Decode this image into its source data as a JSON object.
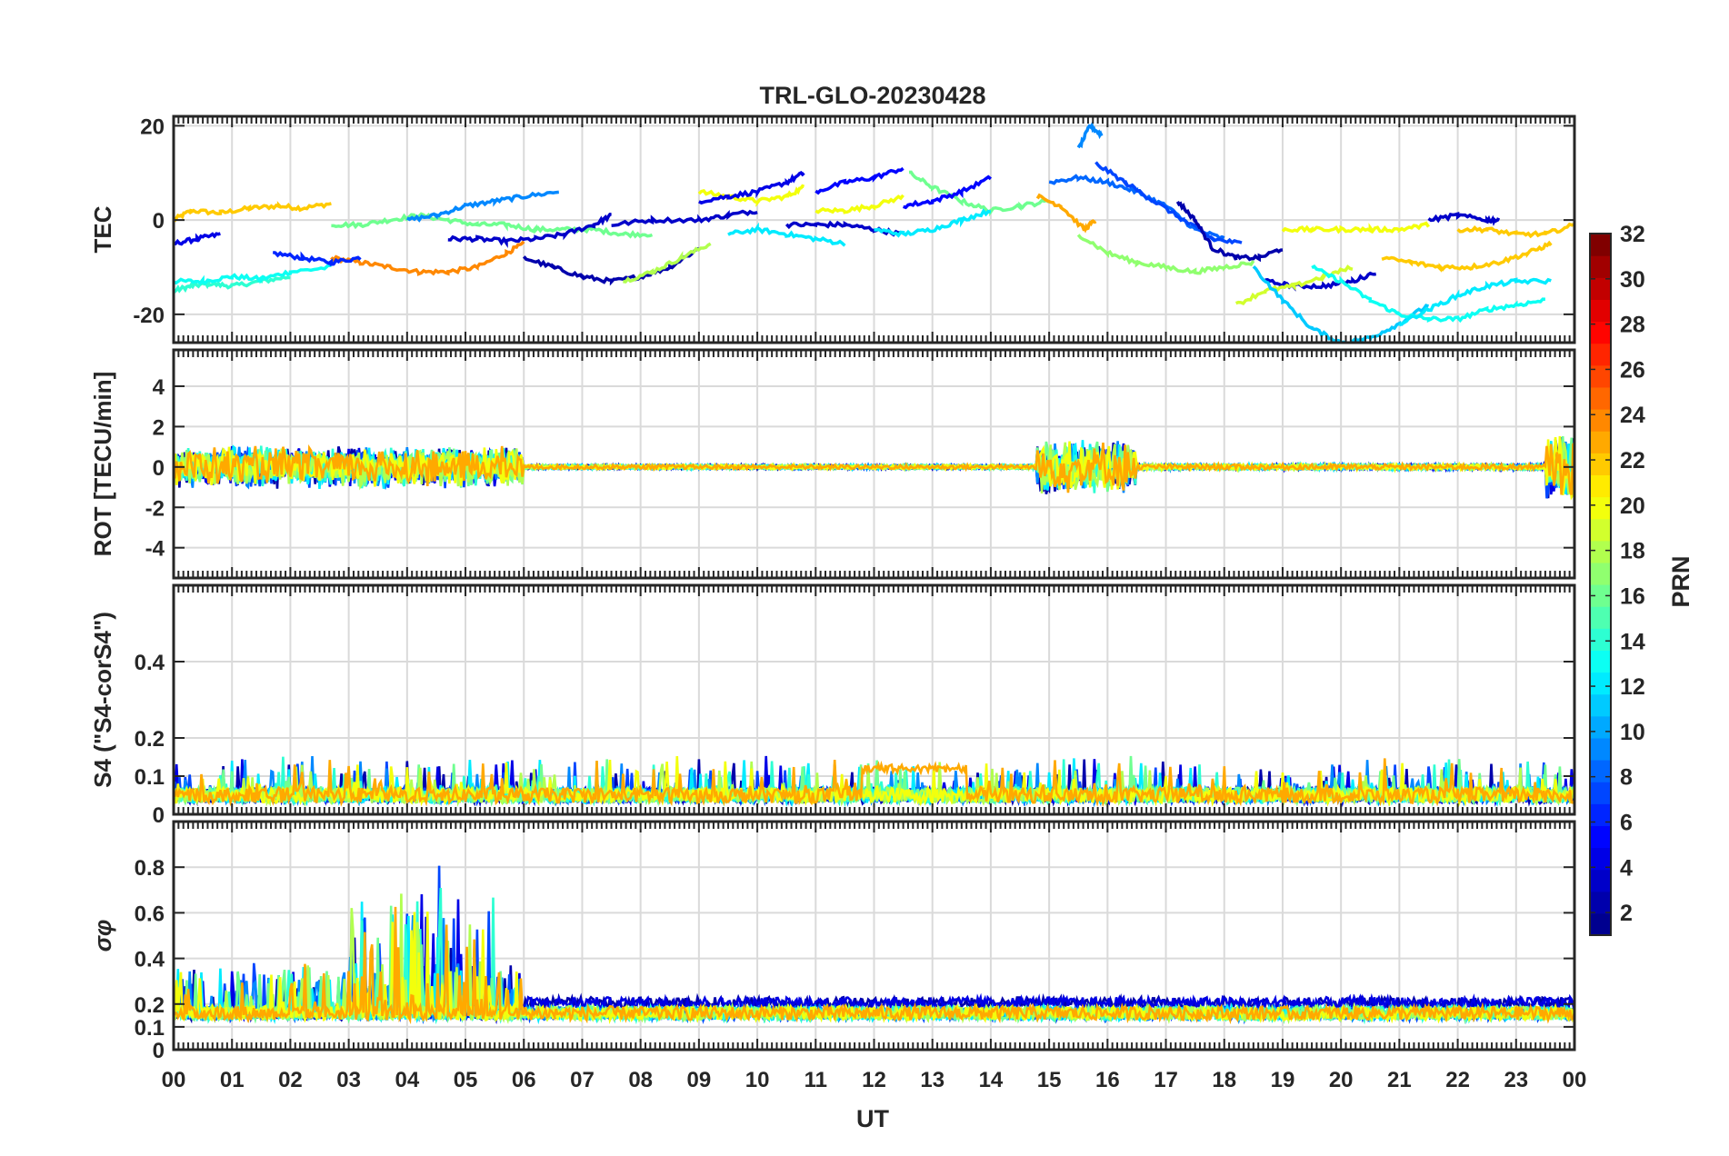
{
  "chart_data": {
    "type": "line",
    "title": "TRL-GLO-20230428",
    "xlabel": "UT",
    "x_tick_labels": [
      "00",
      "01",
      "02",
      "03",
      "04",
      "05",
      "06",
      "07",
      "08",
      "09",
      "10",
      "11",
      "12",
      "13",
      "14",
      "15",
      "16",
      "17",
      "18",
      "19",
      "20",
      "21",
      "22",
      "23",
      "00"
    ],
    "x_range_hours": [
      0,
      24
    ],
    "colorbar": {
      "label": "PRN",
      "range": [
        1,
        32
      ],
      "tick_labels": [
        "2",
        "4",
        "6",
        "8",
        "10",
        "12",
        "14",
        "16",
        "18",
        "20",
        "22",
        "24",
        "26",
        "28",
        "30",
        "32"
      ],
      "colormap": [
        "#00008f",
        "#0000ff",
        "#0080ff",
        "#00ffff",
        "#80ff80",
        "#ffff00",
        "#ff8000",
        "#ff0000",
        "#800000"
      ]
    },
    "panels": [
      {
        "id": "tec",
        "ylabel": "TEC",
        "ylim": [
          -26,
          22
        ],
        "y_ticks": [
          20,
          0,
          -20
        ],
        "y_tick_labels": [
          "20",
          "0",
          "-20"
        ],
        "series": [
          {
            "prn": 22,
            "x": [
              0,
              0.3,
              0.8,
              1.3,
              1.8,
              2.2,
              2.7
            ],
            "y": [
              0,
              2,
              1.5,
              2.5,
              3,
              2.5,
              3.5
            ]
          },
          {
            "prn": 14,
            "x": [
              0,
              0.3,
              0.6,
              1.0,
              1.5,
              2.0
            ],
            "y": [
              -15,
              -14,
              -13.5,
              -14,
              -13,
              -12
            ]
          },
          {
            "prn": 13,
            "x": [
              0,
              0.5,
              1.0,
              1.5,
              2.0,
              2.7
            ],
            "y": [
              -13,
              -13,
              -12,
              -12.5,
              -11,
              -10
            ]
          },
          {
            "prn": 4,
            "x": [
              0,
              0.4,
              0.8
            ],
            "y": [
              -5,
              -4,
              -3
            ]
          },
          {
            "prn": 24,
            "x": [
              2.7,
              3.2,
              3.7,
              4.2,
              4.7,
              5.2,
              5.7,
              6.0
            ],
            "y": [
              -8,
              -9,
              -10,
              -11,
              -11,
              -10,
              -7,
              -5
            ]
          },
          {
            "prn": 6,
            "x": [
              1.7,
              2.2,
              2.7,
              3.2
            ],
            "y": [
              -7,
              -8,
              -9,
              -8
            ]
          },
          {
            "prn": 16,
            "x": [
              2.7,
              3.2,
              3.7,
              4.2,
              4.7,
              5.2,
              5.7,
              6.2,
              6.7,
              7.2,
              7.7,
              8.2
            ],
            "y": [
              -1,
              -1,
              0,
              1,
              0,
              -1,
              -1,
              -2,
              -2,
              -2,
              -3,
              -3
            ]
          },
          {
            "prn": 9,
            "x": [
              4.0,
              4.5,
              5.0,
              5.5,
              6.0,
              6.6
            ],
            "y": [
              0,
              1,
              3,
              4,
              5,
              6
            ]
          },
          {
            "prn": 3,
            "x": [
              4.7,
              5.2,
              5.7,
              6.2,
              6.7,
              7.2,
              7.5
            ],
            "y": [
              -4,
              -4,
              -4.5,
              -4,
              -3,
              -1,
              1
            ]
          },
          {
            "prn": 2,
            "x": [
              6.0,
              6.5,
              7.0,
              7.5,
              8.0,
              8.5,
              9.0
            ],
            "y": [
              -8,
              -10,
              -12,
              -13,
              -12,
              -10,
              -6
            ]
          },
          {
            "prn": 3,
            "x": [
              7.5,
              8.2,
              9.0,
              9.5,
              10.0
            ],
            "y": [
              -1,
              0,
              0,
              1,
              2
            ]
          },
          {
            "prn": 18,
            "x": [
              7.7,
              8.2,
              8.7,
              9.2
            ],
            "y": [
              -13,
              -11,
              -8,
              -5
            ]
          },
          {
            "prn": 20,
            "x": [
              9.0,
              9.5,
              10.0,
              10.5,
              10.8
            ],
            "y": [
              6,
              5,
              4,
              5,
              7
            ]
          },
          {
            "prn": 4,
            "x": [
              9.0,
              9.5,
              10.0,
              10.5,
              10.8
            ],
            "y": [
              4,
              5,
              6,
              8,
              10
            ]
          },
          {
            "prn": 12,
            "x": [
              9.5,
              10.0,
              10.5,
              11.0,
              11.5
            ],
            "y": [
              -3,
              -2,
              -3,
              -4,
              -5
            ]
          },
          {
            "prn": 3,
            "x": [
              10.5,
              11.0,
              11.5,
              12.0,
              12.5
            ],
            "y": [
              -1,
              -1,
              -1,
              -2,
              -3
            ]
          },
          {
            "prn": 20,
            "x": [
              11.0,
              11.5,
              12.0,
              12.5
            ],
            "y": [
              2,
              2,
              3,
              5
            ]
          },
          {
            "prn": 5,
            "x": [
              11.0,
              11.5,
              12.0,
              12.5
            ],
            "y": [
              6,
              8,
              9,
              11
            ]
          },
          {
            "prn": 16,
            "x": [
              12.6,
              13.0,
              13.5,
              14.0,
              14.5,
              15.0
            ],
            "y": [
              10,
              7,
              4,
              2,
              3,
              4
            ]
          },
          {
            "prn": 5,
            "x": [
              12.5,
              13.0,
              13.5,
              14.0
            ],
            "y": [
              3,
              4,
              6,
              9
            ]
          },
          {
            "prn": 12,
            "x": [
              12.0,
              12.5,
              13.0,
              13.5,
              14.0
            ],
            "y": [
              -2,
              -3,
              -2,
              0,
              2
            ]
          },
          {
            "prn": 23,
            "x": [
              14.8,
              15.2,
              15.6,
              15.8
            ],
            "y": [
              5,
              3,
              -2,
              0
            ]
          },
          {
            "prn": 9,
            "x": [
              15.5,
              15.7,
              15.9
            ],
            "y": [
              15,
              20,
              18
            ]
          },
          {
            "prn": 8,
            "x": [
              15.0,
              15.5,
              16.0,
              16.5,
              17.0,
              17.5,
              18.0
            ],
            "y": [
              8,
              9,
              8,
              6,
              3,
              -2,
              -4
            ]
          },
          {
            "prn": 7,
            "x": [
              15.8,
              16.3,
              16.8,
              17.3,
              17.8,
              18.3
            ],
            "y": [
              12,
              8,
              4,
              0,
              -4,
              -5
            ]
          },
          {
            "prn": 17,
            "x": [
              15.5,
              16.0,
              16.5,
              17.0,
              17.5,
              18.0,
              18.5
            ],
            "y": [
              -3,
              -7,
              -9,
              -10,
              -11,
              -10,
              -9
            ]
          },
          {
            "prn": 2,
            "x": [
              17.2,
              17.5,
              17.8,
              18.2,
              18.6,
              19.0
            ],
            "y": [
              4,
              0,
              -6,
              -8,
              -8,
              -6
            ]
          },
          {
            "prn": 3,
            "x": [
              18.7,
              19.2,
              19.7,
              20.2,
              20.6
            ],
            "y": [
              -13,
              -14,
              -14,
              -13,
              -11
            ]
          },
          {
            "prn": 19,
            "x": [
              18.2,
              18.7,
              19.2,
              19.7,
              20.2
            ],
            "y": [
              -18,
              -15,
              -14,
              -12,
              -10
            ]
          },
          {
            "prn": 11,
            "x": [
              18.5,
              19.0,
              19.5,
              20.0,
              20.5,
              21.0,
              21.5
            ],
            "y": [
              -10,
              -17,
              -23,
              -26,
              -25,
              -22,
              -18
            ]
          },
          {
            "prn": 13,
            "x": [
              19.5,
              20.0,
              20.5,
              21.0,
              21.5,
              22.0,
              22.5,
              23.0,
              23.5
            ],
            "y": [
              -10,
              -13,
              -17,
              -20,
              -21,
              -21,
              -19,
              -18,
              -17
            ]
          },
          {
            "prn": 20,
            "x": [
              19.0,
              19.5,
              20.0,
              20.5,
              21.0,
              21.5
            ],
            "y": [
              -2,
              -2,
              -2,
              -2,
              -2,
              -1
            ]
          },
          {
            "prn": 22,
            "x": [
              20.7,
              21.2,
              21.7,
              22.2,
              22.7,
              23.2,
              23.6
            ],
            "y": [
              -8,
              -9,
              -10,
              -10,
              -9,
              -7,
              -5
            ]
          },
          {
            "prn": 3,
            "x": [
              21.5,
              22.0,
              22.5,
              22.7
            ],
            "y": [
              0,
              1,
              0,
              0
            ]
          },
          {
            "prn": 22,
            "x": [
              22.0,
              22.5,
              23.0,
              23.5,
              24.0
            ],
            "y": [
              -2,
              -2,
              -3,
              -3,
              -1
            ]
          },
          {
            "prn": 12,
            "x": [
              21.0,
              21.5,
              22.0,
              22.5,
              23.0,
              23.6
            ],
            "y": [
              -22,
              -19,
              -16,
              -14,
              -13,
              -13
            ]
          }
        ]
      },
      {
        "id": "rot",
        "ylabel": "ROT [TECU/min]",
        "ylim": [
          -5.5,
          5.8
        ],
        "y_ticks": [
          4,
          2,
          0,
          -2,
          -4
        ],
        "y_tick_labels": [
          "4",
          "2",
          "0",
          "-2",
          "-4"
        ]
      },
      {
        "id": "s4",
        "ylabel": "S4 (\"S4-corS4\")",
        "ylim": [
          0,
          0.6
        ],
        "y_ticks": [
          0.4,
          0.2,
          0.1,
          0
        ],
        "y_tick_labels": [
          "0.4",
          "0.2",
          "0.1",
          "0"
        ]
      },
      {
        "id": "sigma",
        "ylabel": "σφ",
        "ylim": [
          0,
          1
        ],
        "y_ticks": [
          0.8,
          0.6,
          0.4,
          0.2,
          0.1,
          0
        ],
        "y_tick_labels": [
          "0.8",
          "0.6",
          "0.4",
          "0.2",
          "0.1",
          "0"
        ]
      }
    ],
    "activity_bursts": {
      "rot": [
        {
          "start": 0,
          "end": 6,
          "amp": 2.2
        },
        {
          "start": 14.8,
          "end": 16.5,
          "amp": 2.8
        },
        {
          "start": 23.5,
          "end": 24,
          "amp": 3.5
        }
      ],
      "s4_peaks": [
        {
          "x": 12.3,
          "y": 0.12
        }
      ],
      "sigma": [
        {
          "start": 3.0,
          "end": 5.5,
          "amp": 0.7
        }
      ]
    }
  }
}
